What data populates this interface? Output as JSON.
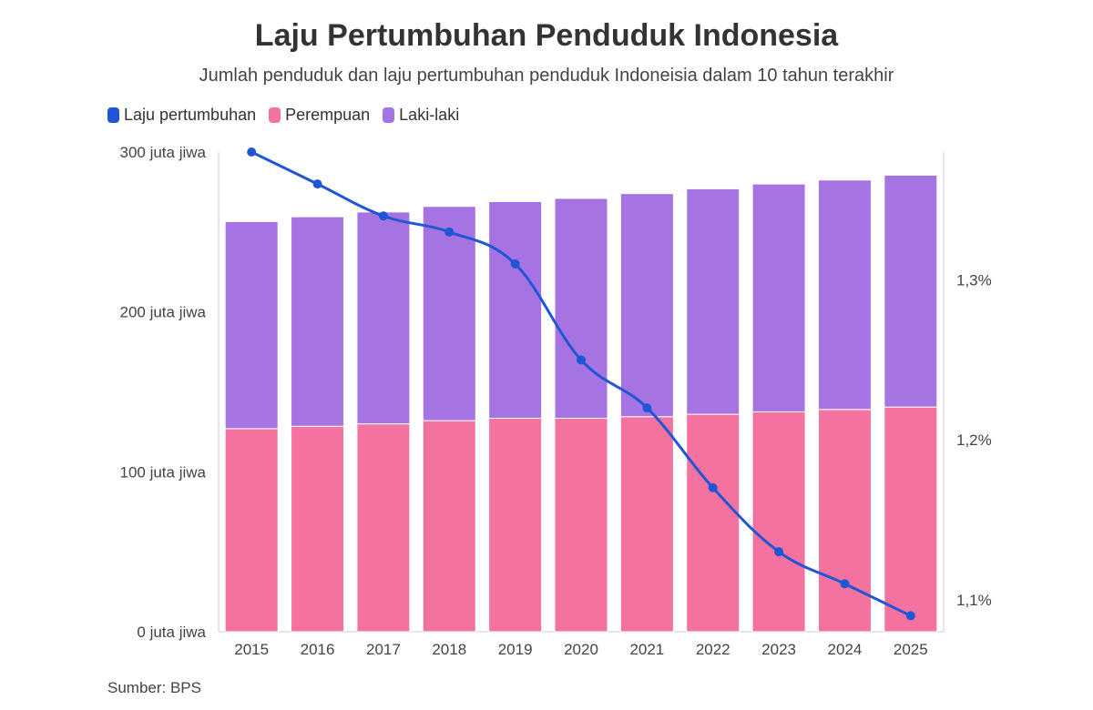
{
  "chart_data": {
    "type": "bar",
    "title": "Laju Pertumbuhan Penduduk Indonesia",
    "subtitle": "Jumlah penduduk dan laju pertumbuhan penduduk Indoneisia dalam 10 tahun terakhir",
    "source": "Sumber: BPS",
    "categories": [
      "2015",
      "2016",
      "2017",
      "2018",
      "2019",
      "2020",
      "2021",
      "2022",
      "2023",
      "2024",
      "2025"
    ],
    "legend": [
      {
        "label": "Laju pertumbuhan",
        "color": "#1f56d6"
      },
      {
        "label": "Perempuan",
        "color": "#f472a0"
      },
      {
        "label": "Laki-laki",
        "color": "#a674e2"
      }
    ],
    "series": [
      {
        "name": "Perempuan",
        "type": "bar",
        "stack": "penduduk",
        "axis": "left",
        "color": "#f472a0",
        "values": [
          127,
          128.5,
          130,
          132,
          133.5,
          133.5,
          134.5,
          136,
          137.5,
          139,
          140.5
        ]
      },
      {
        "name": "Laki-laki",
        "type": "bar",
        "stack": "penduduk",
        "axis": "left",
        "color": "#a674e2",
        "values": [
          129.5,
          131,
          132.5,
          134,
          135.5,
          137.5,
          139.5,
          141,
          142.5,
          143.5,
          145
        ]
      },
      {
        "name": "Laju pertumbuhan",
        "type": "line",
        "axis": "right",
        "color": "#1f56d6",
        "values": [
          1.38,
          1.36,
          1.34,
          1.33,
          1.31,
          1.25,
          1.22,
          1.17,
          1.13,
          1.11,
          1.09
        ]
      }
    ],
    "y_left": {
      "ticks": [
        0,
        100,
        200,
        300
      ],
      "tick_labels": [
        "0 juta jiwa",
        "100 juta jiwa",
        "200 juta jiwa",
        "300 juta jiwa"
      ],
      "ylim": [
        0,
        300
      ]
    },
    "y_right": {
      "ticks": [
        1.1,
        1.2,
        1.3
      ],
      "tick_labels": [
        "1,1%",
        "1,2%",
        "1,3%"
      ],
      "ylim": [
        1.08,
        1.38
      ]
    },
    "grid": false,
    "legend_position": "top-left"
  }
}
